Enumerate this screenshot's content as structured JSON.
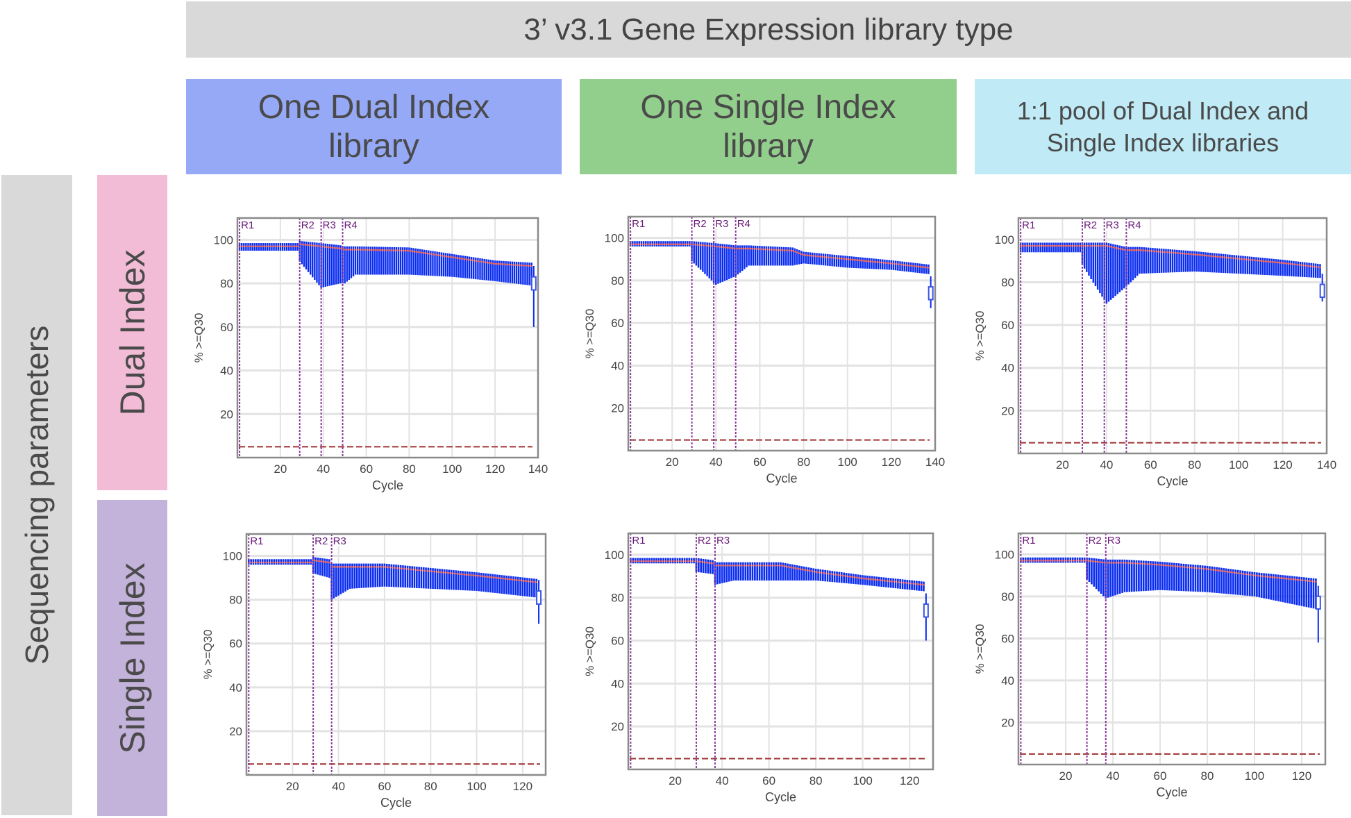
{
  "title": "3’ v3.1 Gene Expression library type",
  "columns": [
    {
      "lines": [
        "One Dual Index",
        "library"
      ],
      "color": "#95a9f7"
    },
    {
      "lines": [
        "One Single Index",
        "library"
      ],
      "color": "#93cf8c"
    },
    {
      "lines": [
        "1:1 pool of Dual Index and",
        "Single Index libraries"
      ],
      "color": "#bfeaf6"
    }
  ],
  "side_label": "Sequencing parameters",
  "rows": [
    {
      "label": "Dual Index",
      "color": "#f3bcd6"
    },
    {
      "label": "Single Index",
      "color": "#c3b2da"
    }
  ],
  "colors": {
    "boxes": "#0a2cf0",
    "median": "#e05050",
    "threshold": "#a03030",
    "region_line": "#8a3a9a",
    "region_label": "#6a1b7a"
  },
  "chart_data": [
    {
      "type": "box",
      "xlabel": "Cycle",
      "ylabel": "% >=Q30",
      "xlim": [
        0,
        140
      ],
      "ylim": [
        0,
        110
      ],
      "xticks": [
        20,
        40,
        60,
        80,
        100,
        120,
        140
      ],
      "yticks": [
        20,
        40,
        60,
        80,
        100
      ],
      "grid": true,
      "threshold": 5,
      "regions": [
        {
          "label": "R1",
          "cycle": 1
        },
        {
          "label": "R2",
          "cycle": 29
        },
        {
          "label": "R3",
          "cycle": 39
        },
        {
          "label": "R4",
          "cycle": 49
        }
      ],
      "profile": {
        "cycle": [
          1,
          28,
          29,
          39,
          48,
          50,
          55,
          80,
          100,
          120,
          137
        ],
        "median": [
          97,
          97,
          98,
          97,
          96,
          95.5,
          95.5,
          95,
          92,
          89,
          88
        ],
        "lower": [
          95,
          95,
          90,
          78,
          80,
          80,
          84,
          84,
          83,
          81,
          79
        ]
      },
      "last": {
        "cycle": 138,
        "median": 80,
        "lower": 60
      }
    },
    {
      "type": "box",
      "xlabel": "Cycle",
      "ylabel": "% >=Q30",
      "xlim": [
        0,
        140
      ],
      "ylim": [
        0,
        110
      ],
      "xticks": [
        20,
        40,
        60,
        80,
        100,
        120,
        140
      ],
      "yticks": [
        20,
        40,
        60,
        80,
        100
      ],
      "grid": true,
      "threshold": 5,
      "regions": [
        {
          "label": "R1",
          "cycle": 1
        },
        {
          "label": "R2",
          "cycle": 29
        },
        {
          "label": "R3",
          "cycle": 39
        },
        {
          "label": "R4",
          "cycle": 49
        }
      ],
      "profile": {
        "cycle": [
          1,
          28,
          29,
          40,
          49,
          55,
          75,
          80,
          100,
          120,
          137
        ],
        "median": [
          97,
          97,
          97,
          96,
          95,
          95,
          94,
          92,
          90,
          88,
          86
        ],
        "lower": [
          96,
          96,
          89,
          78,
          82,
          87,
          87,
          88,
          86,
          85,
          83
        ]
      },
      "last": {
        "cycle": 138,
        "median": 74,
        "lower": 67
      }
    },
    {
      "type": "box",
      "xlabel": "Cycle",
      "ylabel": "% >=Q30",
      "xlim": [
        0,
        140
      ],
      "ylim": [
        0,
        110
      ],
      "xticks": [
        20,
        40,
        60,
        80,
        100,
        120,
        140
      ],
      "yticks": [
        20,
        40,
        60,
        80,
        100
      ],
      "grid": true,
      "threshold": 5,
      "regions": [
        {
          "label": "R1",
          "cycle": 1
        },
        {
          "label": "R2",
          "cycle": 29
        },
        {
          "label": "R3",
          "cycle": 39
        },
        {
          "label": "R4",
          "cycle": 49
        }
      ],
      "profile": {
        "cycle": [
          1,
          28,
          29,
          40,
          49,
          55,
          80,
          100,
          120,
          137
        ],
        "median": [
          97,
          97,
          97,
          97,
          95,
          95,
          93,
          91,
          89,
          87
        ],
        "lower": [
          94,
          94,
          88,
          70,
          78,
          84,
          85,
          84,
          83,
          82
        ]
      },
      "last": {
        "cycle": 138,
        "median": 76,
        "lower": 71
      }
    },
    {
      "type": "box",
      "xlabel": "Cycle",
      "ylabel": "% >=Q30",
      "xlim": [
        0,
        130
      ],
      "ylim": [
        0,
        110
      ],
      "xticks": [
        20,
        40,
        60,
        80,
        100,
        120
      ],
      "yticks": [
        20,
        40,
        60,
        80,
        100
      ],
      "grid": true,
      "threshold": 5,
      "regions": [
        {
          "label": "R1",
          "cycle": 1
        },
        {
          "label": "R2",
          "cycle": 29
        },
        {
          "label": "R3",
          "cycle": 37
        }
      ],
      "profile": {
        "cycle": [
          1,
          28,
          29,
          36,
          37,
          45,
          60,
          80,
          100,
          126
        ],
        "median": [
          97,
          97,
          98,
          97,
          95,
          95,
          95,
          93,
          91,
          88
        ],
        "lower": [
          96,
          96,
          92,
          90,
          80,
          85,
          86,
          85,
          84,
          81
        ]
      },
      "last": {
        "cycle": 127,
        "median": 81,
        "lower": 69
      }
    },
    {
      "type": "box",
      "xlabel": "Cycle",
      "ylabel": "% >=Q30",
      "xlim": [
        0,
        130
      ],
      "ylim": [
        0,
        110
      ],
      "xticks": [
        20,
        40,
        60,
        80,
        100,
        120
      ],
      "yticks": [
        20,
        40,
        60,
        80,
        100
      ],
      "grid": true,
      "threshold": 5,
      "regions": [
        {
          "label": "R1",
          "cycle": 1
        },
        {
          "label": "R2",
          "cycle": 29
        },
        {
          "label": "R3",
          "cycle": 37
        }
      ],
      "profile": {
        "cycle": [
          1,
          28,
          29,
          36,
          37,
          45,
          65,
          80,
          100,
          126
        ],
        "median": [
          97,
          97,
          97,
          96,
          95,
          95,
          95,
          92,
          89,
          86
        ],
        "lower": [
          96,
          96,
          92,
          91,
          86,
          88,
          88,
          88,
          86,
          83
        ]
      },
      "last": {
        "cycle": 127,
        "median": 74,
        "lower": 60
      }
    },
    {
      "type": "box",
      "xlabel": "Cycle",
      "ylabel": "% >=Q30",
      "xlim": [
        0,
        130
      ],
      "ylim": [
        0,
        110
      ],
      "xticks": [
        20,
        40,
        60,
        80,
        100,
        120
      ],
      "yticks": [
        20,
        40,
        60,
        80,
        100
      ],
      "grid": true,
      "threshold": 5,
      "regions": [
        {
          "label": "R1",
          "cycle": 1
        },
        {
          "label": "R2",
          "cycle": 29
        },
        {
          "label": "R3",
          "cycle": 37
        }
      ],
      "profile": {
        "cycle": [
          1,
          28,
          29,
          37,
          45,
          60,
          80,
          100,
          126
        ],
        "median": [
          97,
          97,
          97,
          96,
          96,
          95,
          93,
          90,
          87
        ],
        "lower": [
          96,
          96,
          88,
          79,
          82,
          83,
          82,
          80,
          74
        ]
      },
      "last": {
        "cycle": 127,
        "median": 77,
        "lower": 58
      }
    }
  ]
}
